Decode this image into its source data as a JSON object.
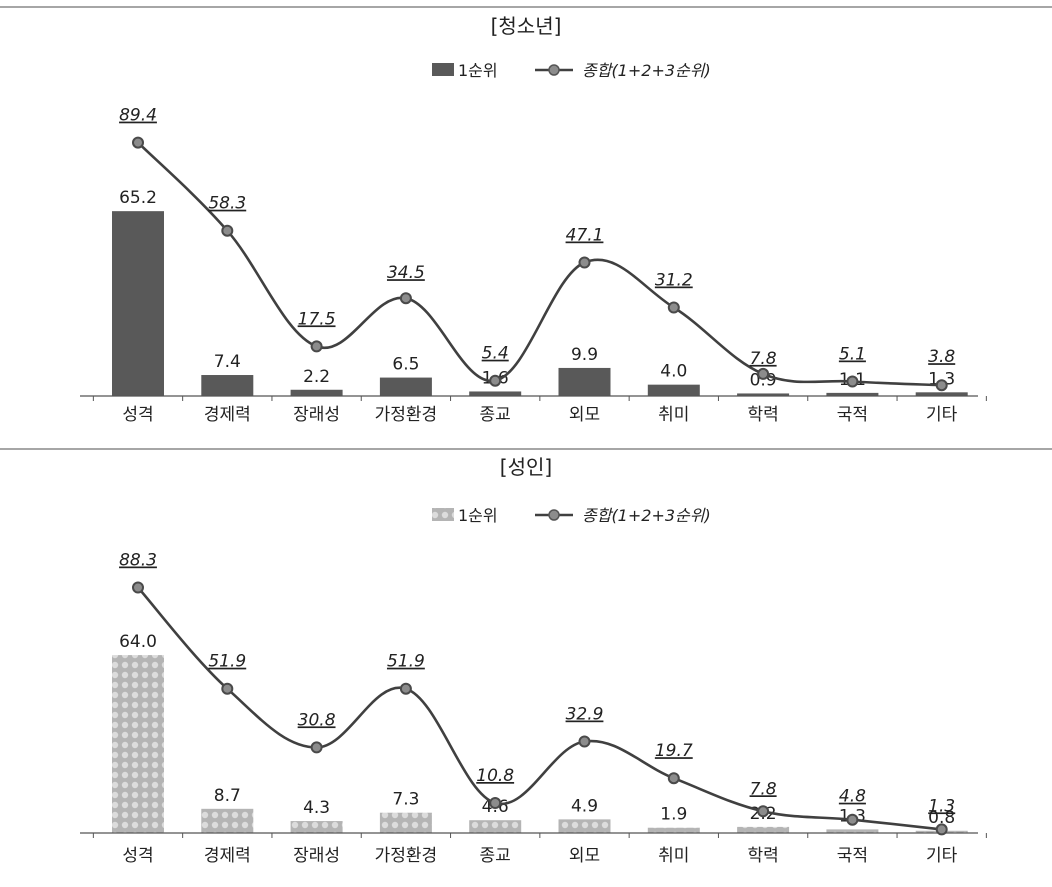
{
  "chart_data": [
    {
      "type": "bar",
      "title": "[청소년]",
      "categories": [
        "성격",
        "경제력",
        "장래성",
        "가정환경",
        "종교",
        "외모",
        "취미",
        "학력",
        "국적",
        "기타"
      ],
      "series": [
        {
          "name": "1순위",
          "type": "bar",
          "color": "#595959",
          "values": [
            65.2,
            7.4,
            2.2,
            6.5,
            1.6,
            9.9,
            4.0,
            0.9,
            1.1,
            1.3
          ]
        },
        {
          "name": "종합(1+2+3순위)",
          "type": "line",
          "smooth": true,
          "color": "#404040",
          "marker_color": "#8c8c8c",
          "values": [
            89.4,
            58.3,
            17.5,
            34.5,
            5.4,
            47.1,
            31.2,
            7.8,
            5.1,
            3.8
          ]
        }
      ],
      "legend_position": "top-center",
      "grid": false,
      "ylim": [
        0,
        100
      ]
    },
    {
      "type": "bar",
      "title": "[성인]",
      "categories": [
        "성격",
        "경제력",
        "장래성",
        "가정환경",
        "종교",
        "외모",
        "취미",
        "학력",
        "국적",
        "기타"
      ],
      "series": [
        {
          "name": "1순위",
          "type": "bar",
          "color": "#bfbfbf",
          "pattern": "dots",
          "values": [
            64.0,
            8.7,
            4.3,
            7.3,
            4.6,
            4.9,
            1.9,
            2.2,
            1.3,
            0.8
          ]
        },
        {
          "name": "종합(1+2+3순위)",
          "type": "line",
          "smooth": true,
          "color": "#404040",
          "marker_color": "#8c8c8c",
          "values": [
            88.3,
            51.9,
            30.8,
            51.9,
            10.8,
            32.9,
            19.7,
            7.8,
            4.8,
            1.3
          ]
        }
      ],
      "legend_position": "top-center",
      "grid": false,
      "ylim": [
        0,
        100
      ]
    }
  ]
}
